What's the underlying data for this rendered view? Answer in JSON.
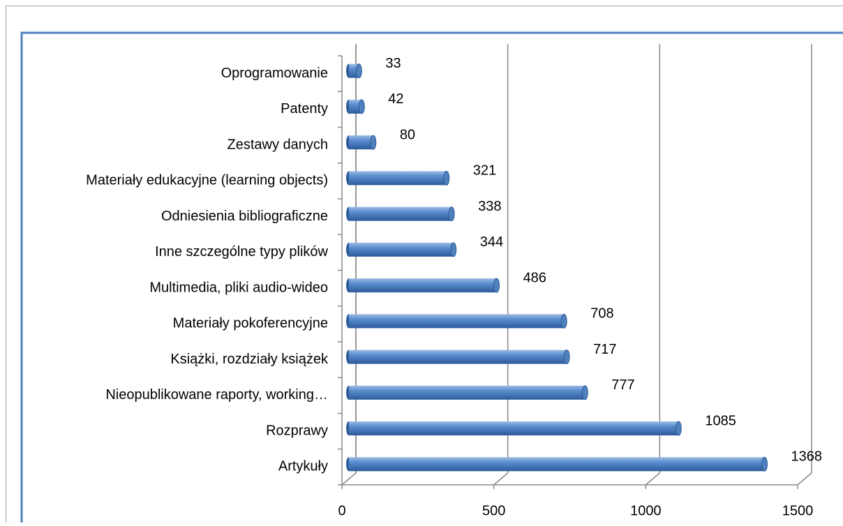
{
  "chart_data": {
    "type": "bar",
    "orientation": "horizontal",
    "categories": [
      "Artykuły",
      "Rozprawy",
      "Nieopublikowane raporty, working…",
      "Książki, rozdziały książek",
      "Materiały pokoferencyjne",
      "Multimedia, pliki audio-wideo",
      "Inne szczególne typy plików",
      "Odniesienia bibliograficzne",
      "Materiały edukacyjne (learning objects)",
      "Zestawy danych",
      "Patenty",
      "Oprogramowanie"
    ],
    "values": [
      1368,
      1085,
      777,
      717,
      708,
      486,
      344,
      338,
      321,
      80,
      42,
      33
    ],
    "color": "#4f81bd",
    "xlim": [
      0,
      1500
    ],
    "xticks": [
      0,
      500,
      1000,
      1500
    ],
    "grid": true
  }
}
